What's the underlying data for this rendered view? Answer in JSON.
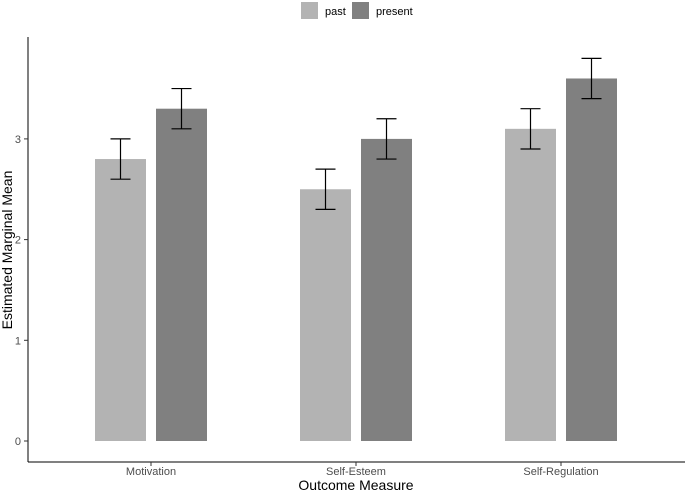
{
  "chart_data": {
    "type": "bar",
    "title": "",
    "xlabel": "Outcome Measure",
    "ylabel": "Estimated Marginal Mean",
    "categories": [
      "Motivation",
      "Self-Esteem",
      "Self-Regulation"
    ],
    "series": [
      {
        "name": "past",
        "color": "#b3b3b3",
        "values": [
          2.8,
          2.5,
          3.1
        ],
        "err_low": [
          2.6,
          2.3,
          2.9
        ],
        "err_high": [
          3.0,
          2.7,
          3.3
        ]
      },
      {
        "name": "present",
        "color": "#808080",
        "values": [
          3.3,
          3.0,
          3.6
        ],
        "err_low": [
          3.1,
          2.8,
          3.4
        ],
        "err_high": [
          3.5,
          3.2,
          3.8
        ]
      }
    ],
    "yticks": [
      "0",
      "1",
      "2",
      "3"
    ],
    "ylim": [
      -0.2,
      3.9
    ],
    "legend_position": "top",
    "grid": false
  }
}
